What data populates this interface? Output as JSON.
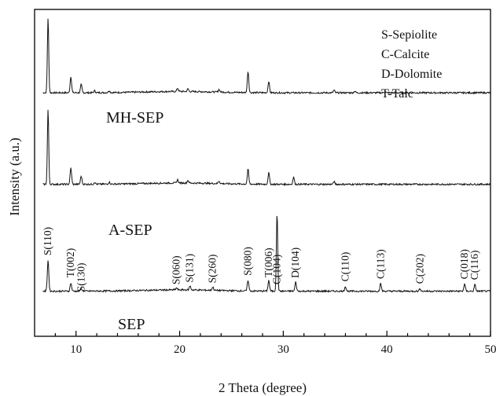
{
  "chart_data": {
    "type": "line",
    "xlabel": "2 Theta (degree)",
    "ylabel": "Intensity (a.u.)",
    "xlim": [
      6,
      50
    ],
    "xticks": [
      10,
      20,
      30,
      40,
      50
    ],
    "y_ticks_shown": false,
    "grid": false,
    "legend": {
      "placement": "top-right",
      "entries": [
        "S-Sepiolite",
        "C-Calcite",
        "D-Dolomite",
        "T-Talc"
      ]
    },
    "series": [
      {
        "name": "MH-SEP",
        "baseline": 0.745,
        "peaks": [
          [
            7.3,
            0.23
          ],
          [
            9.5,
            0.05
          ],
          [
            10.5,
            0.025
          ],
          [
            11.8,
            0.006
          ],
          [
            13.2,
            0.006
          ],
          [
            19.8,
            0.01
          ],
          [
            20.8,
            0.008
          ],
          [
            23.8,
            0.008
          ],
          [
            26.6,
            0.065
          ],
          [
            28.6,
            0.035
          ],
          [
            34.9,
            0.008
          ],
          [
            36.9,
            0.005
          ],
          [
            39.8,
            0.004
          ]
        ]
      },
      {
        "name": "A-SEP",
        "baseline": 0.465,
        "peaks": [
          [
            7.3,
            0.23
          ],
          [
            9.5,
            0.05
          ],
          [
            10.5,
            0.025
          ],
          [
            11.8,
            0.006
          ],
          [
            13.2,
            0.006
          ],
          [
            19.8,
            0.01
          ],
          [
            20.8,
            0.008
          ],
          [
            23.8,
            0.008
          ],
          [
            26.6,
            0.045
          ],
          [
            28.6,
            0.035
          ],
          [
            31.0,
            0.022
          ],
          [
            34.9,
            0.008
          ]
        ]
      },
      {
        "name": "SEP",
        "baseline": 0.138,
        "peaks": [
          [
            7.3,
            0.095
          ],
          [
            9.5,
            0.025
          ],
          [
            10.5,
            0.008
          ],
          [
            19.7,
            0.006
          ],
          [
            21.0,
            0.012
          ],
          [
            23.2,
            0.01
          ],
          [
            26.6,
            0.033
          ],
          [
            28.6,
            0.033
          ],
          [
            29.4,
            0.24
          ],
          [
            31.2,
            0.028
          ],
          [
            36.0,
            0.015
          ],
          [
            39.4,
            0.023
          ],
          [
            43.2,
            0.008
          ],
          [
            47.5,
            0.022
          ],
          [
            48.5,
            0.02
          ]
        ]
      }
    ],
    "peak_annotations": [
      {
        "label": "S(110)",
        "x": 7.3
      },
      {
        "label": "T(002)",
        "x": 9.5
      },
      {
        "label": "S(130)",
        "x": 10.5
      },
      {
        "label": "S(060)",
        "x": 19.7
      },
      {
        "label": "S(131)",
        "x": 21.0
      },
      {
        "label": "S(260)",
        "x": 23.2
      },
      {
        "label": "S(080)",
        "x": 26.6
      },
      {
        "label": "T(006)",
        "x": 28.6
      },
      {
        "label": "C(104)",
        "x": 29.4
      },
      {
        "label": "D(104)",
        "x": 31.2
      },
      {
        "label": "C(110)",
        "x": 36.0
      },
      {
        "label": "C(113)",
        "x": 39.4
      },
      {
        "label": "C(202)",
        "x": 43.2
      },
      {
        "label": "C(018)",
        "x": 47.5
      },
      {
        "label": "C(116)",
        "x": 48.5
      }
    ]
  }
}
